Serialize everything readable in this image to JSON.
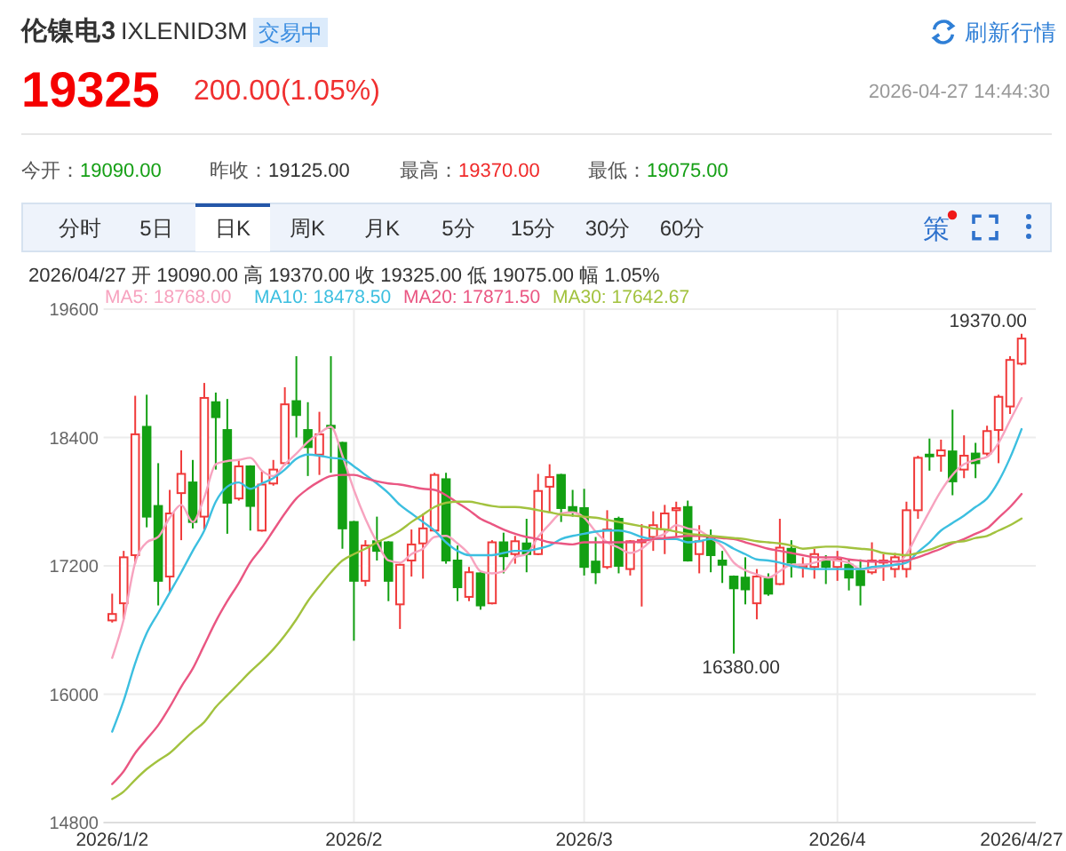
{
  "chart_data": {
    "type": "candlestick",
    "title": "伦镍电3",
    "subtitle": "IXLENID3M",
    "categories": [
      "2026/1/2",
      null,
      null,
      null,
      null,
      null,
      null,
      null,
      null,
      null,
      null,
      null,
      null,
      null,
      null,
      null,
      null,
      null,
      null,
      null,
      null,
      "2026/2",
      null,
      null,
      null,
      null,
      null,
      null,
      null,
      null,
      null,
      null,
      null,
      null,
      null,
      null,
      null,
      null,
      null,
      null,
      null,
      "2026/3",
      null,
      null,
      null,
      null,
      null,
      null,
      null,
      null,
      null,
      null,
      null,
      null,
      null,
      null,
      null,
      null,
      null,
      null,
      null,
      null,
      null,
      "2026/4",
      null,
      null,
      null,
      null,
      null,
      null,
      null,
      null,
      null,
      null,
      null,
      null,
      null,
      null,
      null,
      "2026/4/27"
    ],
    "ohlc": [
      [
        16690,
        16940,
        16670,
        16750
      ],
      [
        16850,
        17340,
        16700,
        17280
      ],
      [
        17300,
        18790,
        17220,
        18430
      ],
      [
        18500,
        18800,
        17560,
        17660
      ],
      [
        17760,
        18160,
        16830,
        17060
      ],
      [
        17100,
        17910,
        16950,
        17690
      ],
      [
        17880,
        18280,
        17440,
        18060
      ],
      [
        17980,
        18190,
        17550,
        17610
      ],
      [
        17660,
        18910,
        17540,
        18770
      ],
      [
        18730,
        18820,
        18100,
        18590
      ],
      [
        18470,
        18760,
        17500,
        17790
      ],
      [
        17830,
        18190,
        17810,
        18130
      ],
      [
        18130,
        18140,
        17530,
        17760
      ],
      [
        17530,
        18080,
        17520,
        17960
      ],
      [
        17970,
        18190,
        17950,
        18100
      ],
      [
        18160,
        18870,
        18140,
        18710
      ],
      [
        18740,
        19160,
        18400,
        18610
      ],
      [
        18470,
        18730,
        18040,
        18310
      ],
      [
        18240,
        18640,
        18050,
        18430
      ],
      [
        18510,
        19160,
        18070,
        18490
      ],
      [
        18350,
        18360,
        17360,
        17550
      ],
      [
        17610,
        17620,
        16500,
        17060
      ],
      [
        17060,
        17440,
        17010,
        17390
      ],
      [
        17430,
        17660,
        17250,
        17340
      ],
      [
        17420,
        17430,
        16870,
        17060
      ],
      [
        16840,
        17220,
        16610,
        17210
      ],
      [
        17250,
        17540,
        17100,
        17400
      ],
      [
        17410,
        17690,
        17080,
        17550
      ],
      [
        17530,
        18070,
        17520,
        18050
      ],
      [
        18010,
        18070,
        17220,
        17250
      ],
      [
        17250,
        17390,
        16870,
        17000
      ],
      [
        16910,
        17190,
        16870,
        17140
      ],
      [
        17130,
        17140,
        16790,
        16830
      ],
      [
        16850,
        17440,
        16840,
        17420
      ],
      [
        17420,
        17510,
        17130,
        17290
      ],
      [
        17310,
        17480,
        17220,
        17430
      ],
      [
        17410,
        17640,
        17140,
        17310
      ],
      [
        17310,
        18060,
        17300,
        17900
      ],
      [
        17940,
        18150,
        17690,
        18030
      ],
      [
        18050,
        18060,
        17610,
        17740
      ],
      [
        17750,
        17910,
        17660,
        17700
      ],
      [
        17740,
        17920,
        17110,
        17190
      ],
      [
        17240,
        17470,
        17030,
        17140
      ],
      [
        17190,
        17720,
        17170,
        17540
      ],
      [
        17640,
        17660,
        17130,
        17200
      ],
      [
        17170,
        17440,
        17110,
        17430
      ],
      [
        17420,
        17590,
        16820,
        17440
      ],
      [
        17470,
        17710,
        17340,
        17580
      ],
      [
        17540,
        17770,
        17310,
        17690
      ],
      [
        17720,
        17800,
        17470,
        17740
      ],
      [
        17750,
        17810,
        17240,
        17250
      ],
      [
        17310,
        17580,
        17130,
        17430
      ],
      [
        17460,
        17540,
        17140,
        17300
      ],
      [
        17250,
        17340,
        17040,
        17210
      ],
      [
        17100,
        17110,
        16380,
        16990
      ],
      [
        17090,
        17280,
        16840,
        16980
      ],
      [
        16850,
        17170,
        16700,
        17100
      ],
      [
        17080,
        17130,
        16920,
        16940
      ],
      [
        17030,
        17640,
        17020,
        17370
      ],
      [
        17360,
        17440,
        17090,
        17230
      ],
      [
        17190,
        17280,
        17090,
        17210
      ],
      [
        17190,
        17360,
        17080,
        17310
      ],
      [
        17250,
        17300,
        17030,
        17190
      ],
      [
        17190,
        17340,
        17060,
        17260
      ],
      [
        17210,
        17260,
        16970,
        17090
      ],
      [
        17150,
        17260,
        16830,
        17020
      ],
      [
        17140,
        17420,
        17120,
        17250
      ],
      [
        17230,
        17310,
        17060,
        17250
      ],
      [
        17170,
        17320,
        17090,
        17280
      ],
      [
        17170,
        17800,
        17090,
        17720
      ],
      [
        17720,
        18230,
        17640,
        18210
      ],
      [
        18240,
        18390,
        18090,
        18230
      ],
      [
        18230,
        18380,
        18080,
        18280
      ],
      [
        18270,
        18660,
        17860,
        17990
      ],
      [
        18100,
        18420,
        18020,
        18230
      ],
      [
        18250,
        18350,
        18020,
        18160
      ],
      [
        18250,
        18510,
        18230,
        18460
      ],
      [
        18470,
        18800,
        18160,
        18780
      ],
      [
        18690,
        19160,
        18620,
        19125
      ],
      [
        19090,
        19370,
        19075,
        19325
      ]
    ],
    "series": [
      {
        "name": "MA5: 18768.00",
        "type": "line",
        "color": "#f7a3bf",
        "values": [
          16340,
          16700,
          17230,
          17420,
          17470,
          17650,
          17770,
          17610,
          17840,
          18150,
          18180,
          18190,
          18210,
          18090,
          18040,
          18150,
          18250,
          18360,
          18440,
          18500,
          18230,
          17910,
          17640,
          17420,
          17250,
          17230,
          17310,
          17360,
          17470,
          17480,
          17410,
          17310,
          17150,
          17130,
          17150,
          17280,
          17310,
          17470,
          17590,
          17690,
          17700,
          17650,
          17520,
          17420,
          17370,
          17320,
          17360,
          17450,
          17500,
          17580,
          17550,
          17530,
          17460,
          17380,
          17230,
          17160,
          17120,
          17090,
          17150,
          17210,
          17210,
          17230,
          17260,
          17250,
          17230,
          17170,
          17170,
          17190,
          17210,
          17310,
          17510,
          17710,
          17900,
          18050,
          18150,
          18190,
          18220,
          18350,
          18560,
          18768
        ]
      },
      {
        "name": "MA10: 18478.50",
        "type": "line",
        "color": "#3cbfe0",
        "values": [
          15650,
          15940,
          16290,
          16570,
          16760,
          16950,
          17140,
          17340,
          17530,
          17800,
          17940,
          17980,
          17920,
          17970,
          18020,
          18100,
          18200,
          18240,
          18230,
          18210,
          18200,
          18130,
          18050,
          17970,
          17880,
          17770,
          17690,
          17610,
          17530,
          17420,
          17340,
          17300,
          17300,
          17300,
          17320,
          17340,
          17340,
          17360,
          17390,
          17450,
          17480,
          17500,
          17520,
          17530,
          17530,
          17510,
          17470,
          17450,
          17450,
          17450,
          17420,
          17430,
          17450,
          17420,
          17360,
          17310,
          17260,
          17250,
          17230,
          17200,
          17180,
          17170,
          17170,
          17170,
          17170,
          17170,
          17190,
          17200,
          17210,
          17230,
          17330,
          17420,
          17530,
          17600,
          17670,
          17750,
          17830,
          17990,
          18210,
          18478.5
        ]
      },
      {
        "name": "MA20: 17871.50",
        "type": "line",
        "color": "#ea5682",
        "values": [
          15160,
          15280,
          15450,
          15580,
          15710,
          15880,
          16070,
          16240,
          16460,
          16680,
          16870,
          17040,
          17230,
          17370,
          17530,
          17690,
          17830,
          17920,
          17990,
          18040,
          18050,
          18050,
          18020,
          17990,
          17970,
          17960,
          17940,
          17920,
          17910,
          17860,
          17790,
          17720,
          17640,
          17590,
          17540,
          17500,
          17470,
          17450,
          17420,
          17410,
          17400,
          17420,
          17420,
          17420,
          17420,
          17420,
          17430,
          17450,
          17460,
          17470,
          17480,
          17480,
          17470,
          17460,
          17450,
          17420,
          17390,
          17360,
          17340,
          17320,
          17300,
          17280,
          17280,
          17280,
          17260,
          17250,
          17240,
          17240,
          17240,
          17250,
          17280,
          17320,
          17360,
          17410,
          17450,
          17500,
          17550,
          17650,
          17750,
          17871.5
        ]
      },
      {
        "name": "MA30: 17642.67",
        "type": "line",
        "color": "#a2c23e",
        "values": [
          15020,
          15090,
          15200,
          15300,
          15380,
          15450,
          15550,
          15650,
          15740,
          15880,
          15990,
          16100,
          16210,
          16310,
          16420,
          16550,
          16700,
          16870,
          17010,
          17140,
          17250,
          17310,
          17360,
          17420,
          17470,
          17530,
          17610,
          17680,
          17750,
          17790,
          17800,
          17800,
          17780,
          17760,
          17750,
          17750,
          17740,
          17720,
          17700,
          17680,
          17670,
          17660,
          17650,
          17630,
          17610,
          17590,
          17570,
          17550,
          17540,
          17520,
          17500,
          17490,
          17480,
          17470,
          17460,
          17450,
          17430,
          17420,
          17410,
          17390,
          17360,
          17370,
          17380,
          17380,
          17370,
          17360,
          17350,
          17320,
          17310,
          17300,
          17320,
          17350,
          17390,
          17420,
          17430,
          17460,
          17480,
          17530,
          17580,
          17642.67
        ]
      }
    ],
    "ylim": [
      14800,
      19600
    ],
    "yticks": [
      14800,
      16000,
      17200,
      18400,
      19600
    ],
    "grid": true,
    "legend": "top",
    "annotations": [
      "交易中",
      "刷新行情",
      "19325",
      "200.00(1.05%)",
      "2026-04-27 14:44:30",
      "今开：",
      "19090.00",
      "昨收：",
      "19125.00",
      "最高：",
      "19370.00",
      "最低：",
      "19075.00",
      "分时",
      "5日",
      "日K",
      "周K",
      "月K",
      "5分",
      "15分",
      "30分",
      "60分",
      "策",
      "2026/04/27 开 19090.00 高 19370.00 收 19325.00 低 19075.00 幅 1.05%",
      {
        "text": "19370.00",
        "x": "2026/4/27",
        "y": 19370
      },
      {
        "text": "16380.00",
        "y": 16380
      }
    ]
  }
}
